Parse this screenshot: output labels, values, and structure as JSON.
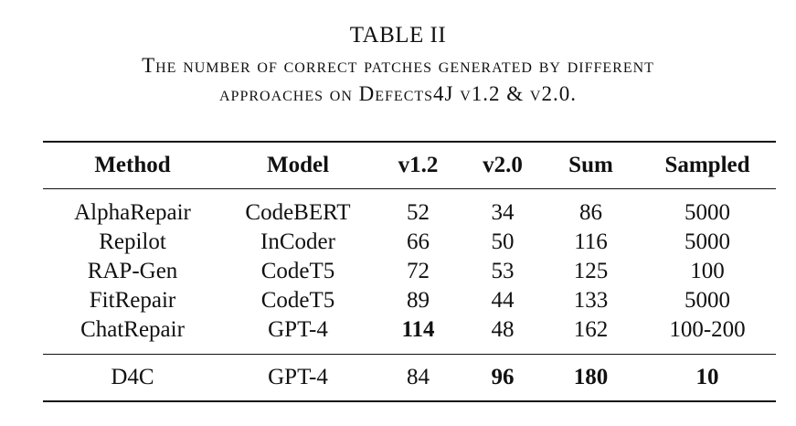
{
  "caption": {
    "table_label": "TABLE II",
    "line1": "The number of correct patches generated by different",
    "line2": "approaches on Defects4J v1.2 & v2.0."
  },
  "table": {
    "headers": [
      "Method",
      "Model",
      "v1.2",
      "v2.0",
      "Sum",
      "Sampled"
    ],
    "rows": [
      [
        "AlphaRepair",
        "CodeBERT",
        "52",
        "34",
        "86",
        "5000"
      ],
      [
        "Repilot",
        "InCoder",
        "66",
        "50",
        "116",
        "5000"
      ],
      [
        "RAP-Gen",
        "CodeT5",
        "72",
        "53",
        "125",
        "100"
      ],
      [
        "FitRepair",
        "CodeT5",
        "89",
        "44",
        "133",
        "5000"
      ],
      [
        "ChatRepair",
        "GPT-4",
        "114",
        "48",
        "162",
        "100-200"
      ]
    ],
    "final_row": [
      "D4C",
      "GPT-4",
      "84",
      "96",
      "180",
      "10"
    ],
    "bold_cells": [
      "rows.4.2",
      "final_row.3",
      "final_row.4",
      "final_row.5"
    ]
  }
}
